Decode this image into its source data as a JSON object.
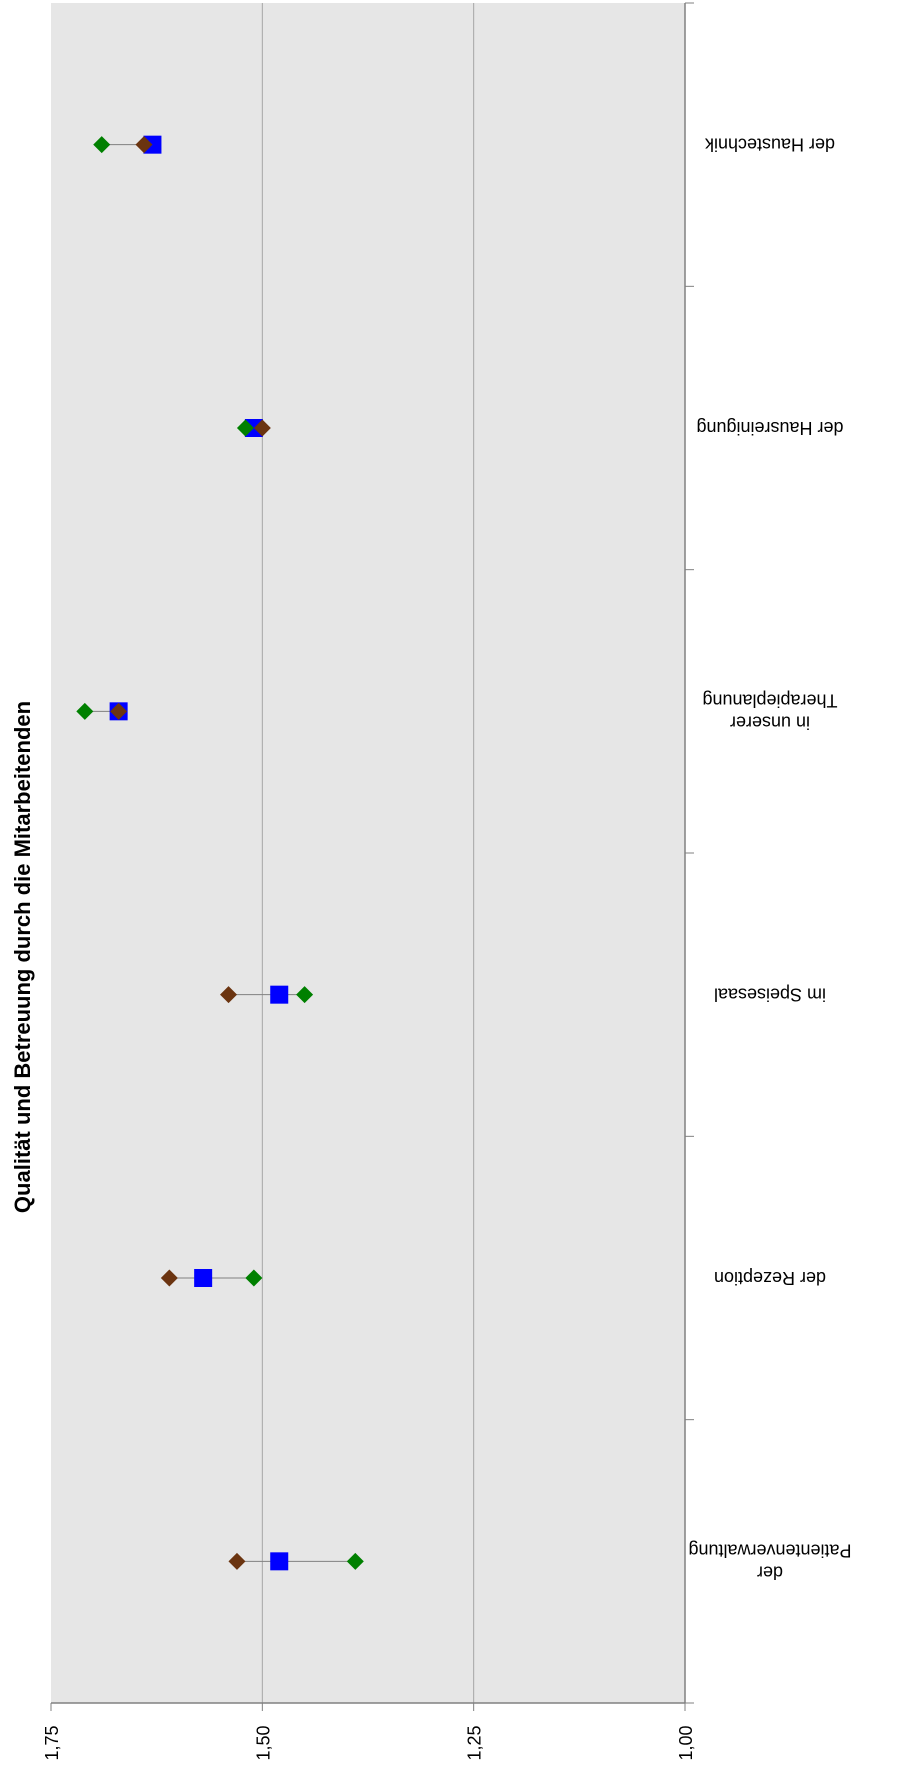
{
  "chart_data": {
    "type": "scatter",
    "title": "Qualität und Betreuung durch die Mitarbeitenden",
    "orientation": "rotated-180",
    "ylim": [
      1.0,
      1.75
    ],
    "ytick_labels": [
      "1,00",
      "1,25",
      "1,50",
      "1,75"
    ],
    "grid": true,
    "categories": [
      [
        "der",
        "Patientenverwaltung"
      ],
      [
        "der Rezeption"
      ],
      [
        "im Speisesaal"
      ],
      [
        "in unserer",
        "Therapieplanung"
      ],
      [
        "der Hausreinigung"
      ],
      [
        "der Haustechnik"
      ]
    ],
    "series": [
      {
        "marker": "square",
        "color": "#0000ff",
        "values": [
          1.48,
          1.57,
          1.48,
          1.67,
          1.51,
          1.63
        ]
      },
      {
        "marker": "diamond",
        "color": "#6b3410",
        "values": [
          1.53,
          1.61,
          1.54,
          1.67,
          1.5,
          1.64
        ]
      },
      {
        "marker": "diamond",
        "color": "#008000",
        "values": [
          1.39,
          1.51,
          1.45,
          1.71,
          1.52,
          1.69
        ]
      }
    ],
    "colors": {
      "plot_background": "#e6e6e6",
      "gridline": "#a6a6a6",
      "axis": "#808080",
      "connector": "#808080"
    }
  }
}
